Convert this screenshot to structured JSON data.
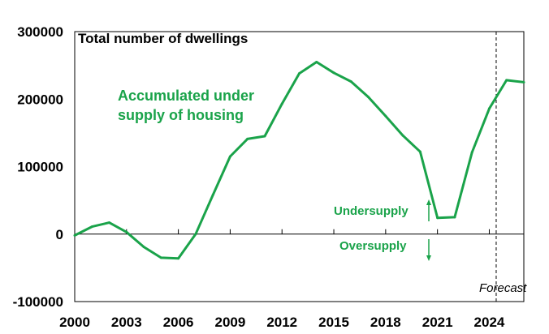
{
  "chart_data": {
    "type": "line",
    "title": "Total number of dwellings",
    "x": [
      2000,
      2001,
      2002,
      2003,
      2004,
      2005,
      2006,
      2007,
      2008,
      2009,
      2010,
      2011,
      2012,
      2013,
      2014,
      2015,
      2016,
      2017,
      2018,
      2019,
      2020,
      2021,
      2022,
      2023,
      2024,
      2025,
      2026
    ],
    "series": [
      {
        "name": "Accumulated under supply of housing",
        "color": "#1aa34a",
        "values": [
          -2000,
          11000,
          17000,
          3000,
          -19000,
          -35000,
          -36000,
          0,
          58000,
          115000,
          141000,
          145000,
          193000,
          238000,
          255000,
          239000,
          226000,
          203000,
          175000,
          146000,
          122000,
          24000,
          25000,
          121000,
          186000,
          228000,
          225000
        ]
      }
    ],
    "xlim": [
      2000,
      2026
    ],
    "ylim": [
      -100000,
      300000
    ],
    "xticks": [
      "2000",
      "2003",
      "2006",
      "2009",
      "2012",
      "2015",
      "2018",
      "2021",
      "2024"
    ],
    "yticks": [
      "300000",
      "200000",
      "100000",
      "0",
      "-100000"
    ],
    "forecast_start": 2024.4,
    "annotations": {
      "series_label_line1": "Accumulated under",
      "series_label_line2": "supply of housing",
      "undersupply": "Undersupply",
      "oversupply": "Oversupply",
      "forecast": "Forecast"
    },
    "grid": false,
    "colors": {
      "line": "#1aa34a",
      "axis": "#000000"
    }
  }
}
